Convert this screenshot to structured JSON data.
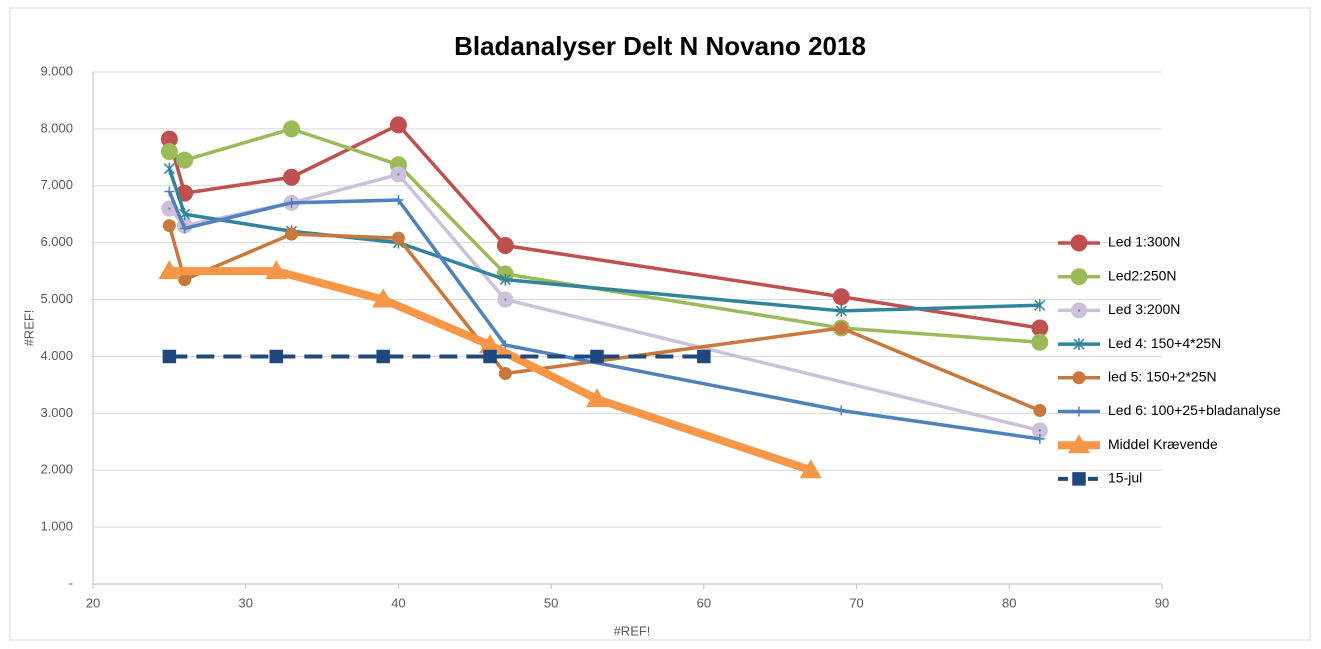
{
  "chart_data": {
    "type": "line",
    "title": "Bladanalyser Delt N Novano 2018",
    "xlabel": "#REF!",
    "ylabel": "#REF!",
    "xlim": [
      20,
      90
    ],
    "xticks": [
      20,
      30,
      40,
      50,
      60,
      70,
      80,
      90
    ],
    "ylim": [
      0,
      9000
    ],
    "yticks": [
      {
        "value": 0,
        "label": "-"
      },
      {
        "value": 1000,
        "label": "1.000"
      },
      {
        "value": 2000,
        "label": "2.000"
      },
      {
        "value": 3000,
        "label": "3.000"
      },
      {
        "value": 4000,
        "label": "4.000"
      },
      {
        "value": 5000,
        "label": "5.000"
      },
      {
        "value": 6000,
        "label": "6.000"
      },
      {
        "value": 7000,
        "label": "7.000"
      },
      {
        "value": 8000,
        "label": "8.000"
      },
      {
        "value": 9000,
        "label": "9.000"
      }
    ],
    "grid": true,
    "legend": "right",
    "series": [
      {
        "name": "Led 1:300N",
        "color": "#c0504d",
        "marker": "circle",
        "x": [
          25,
          26,
          33,
          40,
          47,
          69,
          82
        ],
        "values": [
          7820,
          6870,
          7150,
          8070,
          5950,
          5050,
          4500
        ]
      },
      {
        "name": "Led2:250N",
        "color": "#9bbb59",
        "marker": "circle",
        "x": [
          25,
          26,
          33,
          40,
          47,
          69,
          82
        ],
        "values": [
          7600,
          7450,
          8000,
          7370,
          5450,
          4500,
          4250
        ]
      },
      {
        "name": "Led 3:200N",
        "color": "#ccc0da",
        "marker": "dotcircle",
        "x": [
          25,
          26,
          33,
          40,
          47,
          82
        ],
        "values": [
          6600,
          6300,
          6700,
          7200,
          5000,
          2700
        ]
      },
      {
        "name": "Led 4: 150+4*25N",
        "color": "#31849b",
        "marker": "star",
        "x": [
          25,
          26,
          33,
          40,
          47,
          69,
          82
        ],
        "values": [
          7300,
          6500,
          6200,
          6000,
          5350,
          4800,
          4900
        ]
      },
      {
        "name": "led 5: 150+2*25N",
        "color": "#c9773a",
        "marker": "smallcircle",
        "x": [
          25,
          26,
          33,
          40,
          47,
          69,
          82
        ],
        "values": [
          6300,
          5350,
          6150,
          6080,
          3700,
          4500,
          3050
        ]
      },
      {
        "name": "Led 6: 100+25+bladanalyse",
        "color": "#4f81bd",
        "marker": "plus",
        "x": [
          25,
          26,
          33,
          40,
          47,
          69,
          82
        ],
        "values": [
          6900,
          6250,
          6700,
          6750,
          4200,
          3050,
          2550
        ]
      },
      {
        "name": "Middel Krævende",
        "color": "#f79646",
        "marker": "triangle",
        "thick": true,
        "x": [
          25,
          32,
          39,
          46,
          53,
          67
        ],
        "values": [
          5500,
          5500,
          5000,
          4200,
          3250,
          2000
        ]
      },
      {
        "name": "15-jul",
        "color": "#1f497d",
        "marker": "square",
        "dashed": true,
        "x": [
          25,
          32,
          39,
          46,
          53,
          60
        ],
        "values": [
          4000,
          4000,
          4000,
          4000,
          4000,
          4000
        ]
      }
    ]
  }
}
